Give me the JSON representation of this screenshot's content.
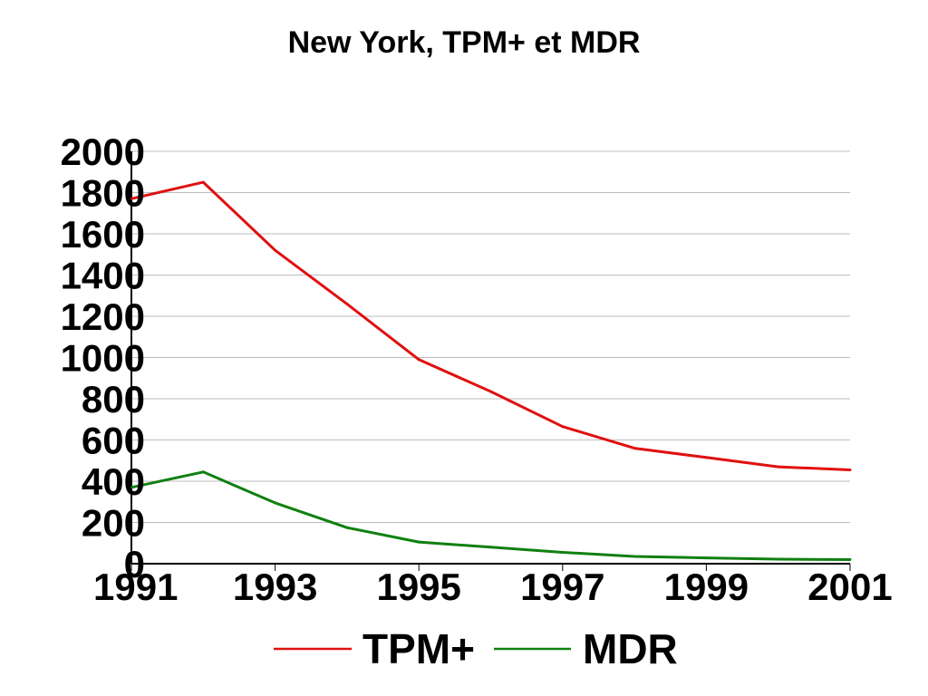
{
  "chart_data": {
    "type": "line",
    "title": "New York, TPM+ et MDR",
    "xlabel": "",
    "ylabel": "",
    "x": [
      1991,
      1992,
      1993,
      1994,
      1995,
      1996,
      1997,
      1998,
      1999,
      2000,
      2001
    ],
    "x_tick_labels": [
      "1991",
      "1993",
      "1995",
      "1997",
      "1999",
      "2001"
    ],
    "y_tick_labels": [
      "0",
      "200",
      "400",
      "600",
      "800",
      "1000",
      "1200",
      "1400",
      "1600",
      "1800",
      "2000"
    ],
    "ylim": [
      0,
      2000
    ],
    "grid": true,
    "legend_position": "bottom",
    "series": [
      {
        "name": "TPM+",
        "color": "#e01010",
        "values": [
          1770,
          1850,
          1520,
          1260,
          990,
          835,
          665,
          560,
          515,
          470,
          455
        ]
      },
      {
        "name": "MDR",
        "color": "#108010",
        "values": [
          370,
          445,
          295,
          175,
          105,
          80,
          55,
          35,
          28,
          22,
          20
        ]
      }
    ]
  }
}
